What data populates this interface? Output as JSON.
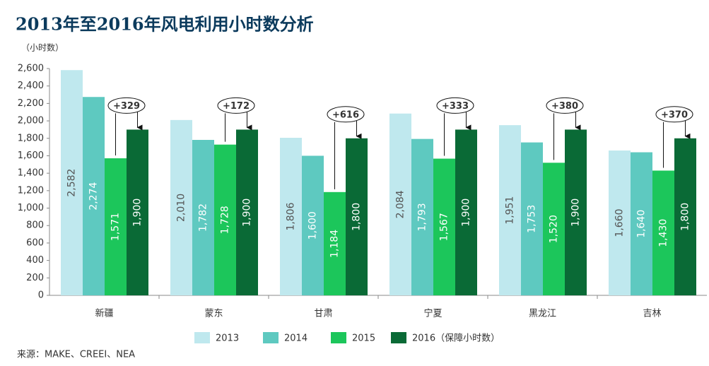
{
  "chart_data": {
    "type": "bar",
    "title": "2013年至2016年风电利用小时数分析",
    "y_axis_label": "（小时数）",
    "source": "来源：MAKE、CREEI、NEA",
    "categories": [
      "新疆",
      "蒙东",
      "甘肃",
      "宁夏",
      "黑龙江",
      "吉林"
    ],
    "series": [
      {
        "name": "2013",
        "color": "#bfe8ee",
        "values": [
          2582,
          2010,
          1806,
          2084,
          1951,
          1660
        ],
        "value_labels": [
          "2,582",
          "2,010",
          "1,806",
          "2,084",
          "1,951",
          "1,660"
        ]
      },
      {
        "name": "2014",
        "color": "#5ec9c0",
        "values": [
          2274,
          1782,
          1600,
          1793,
          1753,
          1640
        ],
        "value_labels": [
          "2,274",
          "1,782",
          "1,600",
          "1,793",
          "1,753",
          "1,640"
        ]
      },
      {
        "name": "2015",
        "color": "#1cc65b",
        "values": [
          1571,
          1728,
          1184,
          1567,
          1520,
          1430
        ],
        "value_labels": [
          "1,571",
          "1,728",
          "1,184",
          "1,567",
          "1,520",
          "1,430"
        ]
      },
      {
        "name": "2016（保障小时数）",
        "color": "#0a6a36",
        "values": [
          1900,
          1900,
          1800,
          1900,
          1900,
          1800
        ],
        "value_labels": [
          "1,900",
          "1,900",
          "1,800",
          "1,900",
          "1,900",
          "1,800"
        ]
      }
    ],
    "annotations": [
      "+329",
      "+172",
      "+616",
      "+333",
      "+380",
      "+370"
    ],
    "ylim": [
      0,
      2600
    ],
    "yticks": [
      0,
      200,
      400,
      600,
      800,
      {
        "value": 1000,
        "label": "1,000"
      },
      {
        "value": 1200,
        "label": "1,200"
      },
      {
        "value": 1400,
        "label": "1,400"
      },
      {
        "value": 1600,
        "label": "1,600"
      },
      {
        "value": 1800,
        "label": "1,800"
      },
      {
        "value": 2000,
        "label": "2,000"
      },
      {
        "value": 2200,
        "label": "2,200"
      },
      {
        "value": 2400,
        "label": "2,400"
      },
      {
        "value": 2600,
        "label": "2,600"
      }
    ],
    "grid": false
  }
}
